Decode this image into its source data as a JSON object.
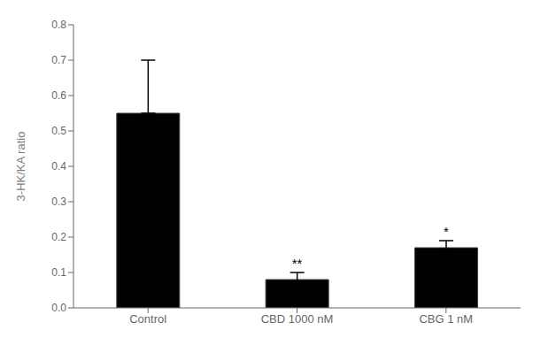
{
  "chart_data": {
    "type": "bar",
    "categories": [
      "Control",
      "CBD 1000 nM",
      "CBG 1 nM"
    ],
    "values": [
      0.55,
      0.08,
      0.17
    ],
    "errors_up": [
      0.15,
      0.02,
      0.02
    ],
    "errors_down": [
      0.0,
      0.02,
      0.02
    ],
    "significance": [
      null,
      "**",
      "*"
    ],
    "ylabel": "3-HK/KA ratio",
    "ylim": [
      0,
      0.8
    ],
    "yticks": [
      {
        "value": 0,
        "label": "0.0"
      },
      0.1,
      0.2,
      0.3,
      0.4,
      0.5,
      0.6,
      0.7,
      0.8
    ],
    "grid": false
  }
}
